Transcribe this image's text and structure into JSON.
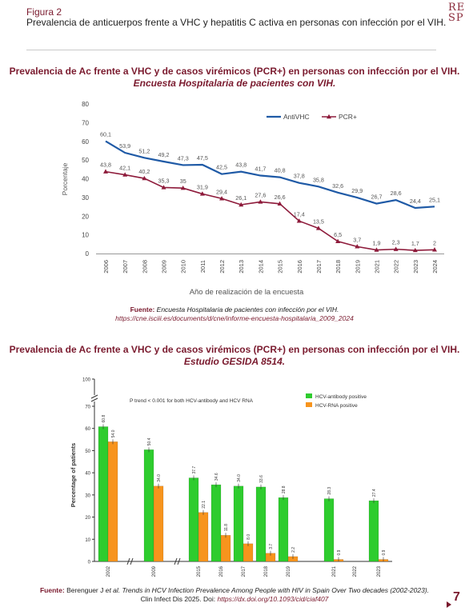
{
  "header": {
    "figure_label": "Figura 2",
    "caption": "Prevalencia de anticuerpos frente a VHC y hepatitis C activa en personas con infección por el VIH.",
    "logo_line1": "RE",
    "logo_line2": "SP"
  },
  "section1": {
    "title": "Prevalencia de Ac frente a VHC y de casos virémicos (PCR+) en personas con infección por el VIH.",
    "subtitle": "Encuesta Hospitalaria de pacientes con VIH.",
    "source_label": "Fuente:",
    "source_text": "Encuesta Hospitalaria de pacientes con infección por el VIH.",
    "source_link": "https://cne.isciii.es/documents/d/cne/informe-encuesta-hospitalaria_2009_2024"
  },
  "section2": {
    "title": "Prevalencia de Ac frente a VHC y de casos virémicos (PCR+) en personas con infección por el VIH.",
    "subtitle": "Estudio GESIDA 8514.",
    "source_label": "Fuente:",
    "source_authors": "Berenguer J ",
    "source_etal": "et al. Trends in HCV Infection Prevalence Among People with HIV in Spain Over Two decades (2002-2023).",
    "source_journal": "Clin Infect Dis 2025. Doi: ",
    "source_doi": "https://dx.doi.org/10.1093/cid/ciaf407"
  },
  "page_number": "7",
  "chart_data": [
    {
      "type": "line",
      "title": "",
      "xlabel": "Año de realización de la encuesta",
      "ylabel": "Porcentaje",
      "ylim": [
        0,
        80
      ],
      "yticks": [
        0,
        10,
        20,
        30,
        40,
        50,
        60,
        70,
        80
      ],
      "grid": false,
      "legend_position": "top-right",
      "categories": [
        "2006",
        "2007",
        "2008",
        "2009",
        "2010",
        "2011",
        "2012",
        "2013",
        "2014",
        "2015",
        "2016",
        "2017",
        "2018",
        "2019",
        "2021",
        "2022",
        "2023",
        "2024"
      ],
      "series": [
        {
          "name": "AntiVHC",
          "color": "#1f5aa6",
          "values": [
            60.1,
            53.9,
            51.2,
            49.2,
            47.3,
            47.5,
            42.5,
            43.8,
            41.7,
            40.8,
            37.8,
            35.8,
            32.6,
            29.9,
            26.7,
            28.6,
            24.4,
            25.1
          ],
          "labels": [
            "60,1",
            "53,9",
            "51,2",
            "49,2",
            "47,3",
            "47,5",
            "42,5",
            "43,8",
            "41,7",
            "40,8",
            "37,8",
            "35,8",
            "32,6",
            "29,9",
            "26,7",
            "28,6",
            "24,4",
            "25,1"
          ]
        },
        {
          "name": "PCR+",
          "color": "#8e1b3b",
          "values": [
            43.8,
            42.1,
            40.2,
            35.3,
            35,
            31.9,
            29.4,
            26.1,
            27.6,
            26.6,
            17.4,
            13.5,
            6.5,
            3.7,
            1.9,
            2.3,
            1.7,
            2
          ],
          "labels": [
            "43,8",
            "42,1",
            "40,2",
            "35,3",
            "35",
            "31,9",
            "29,4",
            "26,1",
            "27,6",
            "26,6",
            "17,4",
            "13,5",
            "6,5",
            "3,7",
            "1,9",
            "2,3",
            "1,7",
            "2"
          ]
        }
      ]
    },
    {
      "type": "bar",
      "title": "",
      "annotation": "P trend < 0.001 for both HCV-antibody and HCV RNA",
      "xlabel": "",
      "ylabel": "Percentage of patients",
      "ylim": [
        0,
        100
      ],
      "yticks": [
        0,
        10,
        20,
        30,
        40,
        50,
        60,
        70,
        100
      ],
      "axis_break": true,
      "legend_position": "top-right",
      "categories": [
        "2002",
        "2009",
        "2015",
        "2016",
        "2017",
        "2018",
        "2019",
        "2021",
        "2022",
        "2023"
      ],
      "series": [
        {
          "name": "HCV-antibody positive",
          "color": "#2ecc2e",
          "values": [
            60.8,
            50.4,
            37.7,
            34.6,
            34.0,
            33.6,
            28.8,
            28.3,
            null,
            27.4
          ],
          "labels": [
            "60.8",
            "50.4",
            "37.7",
            "34.6",
            "34.0",
            "33.6",
            "28.8",
            "28.3",
            "",
            "27.4"
          ]
        },
        {
          "name": "HCV-RNA positive",
          "color": "#f7941d",
          "values": [
            54.0,
            34.0,
            22.1,
            11.8,
            8.0,
            3.7,
            2.2,
            0.9,
            null,
            0.9
          ],
          "labels": [
            "54.0",
            "34.0",
            "22.1",
            "11.8",
            "8.0",
            "3.7",
            "2.2",
            "0.9",
            "",
            "0.9"
          ]
        }
      ]
    }
  ]
}
